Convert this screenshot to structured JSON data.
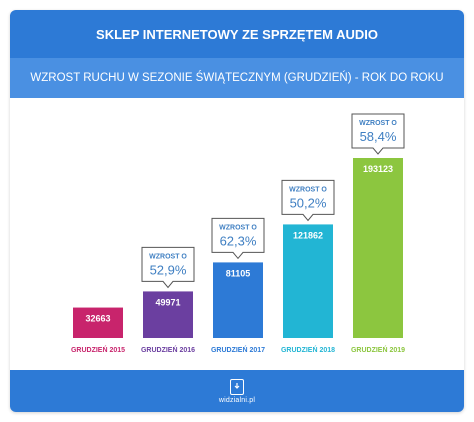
{
  "header": {
    "title": "SKLEP INTERNETOWY ZE SPRZĘTEM AUDIO",
    "subtitle": "WZROST RUCHU W SEZONIE ŚWIĄTECZNYM (GRUDZIEŃ) - ROK DO ROKU"
  },
  "footer": {
    "brand": "widzialni.pl"
  },
  "colors": {
    "header_top": "#2d7ad6",
    "header_sub": "#4a90e2",
    "footer": "#2d7ad6",
    "callout_border": "#555555",
    "callout_small_text": "#3f7fc2",
    "callout_big_text": "#3f7fc2",
    "bar_value_text": "#ffffff"
  },
  "chart_data": {
    "type": "bar",
    "categories": [
      "GRUDZIEŃ 2015",
      "GRUDZIEŃ 2016",
      "GRUDZIEŃ 2017",
      "GRUDZIEŃ 2018",
      "GRUDZIEŃ 2019"
    ],
    "values": [
      32663,
      49971,
      81105,
      121862,
      193123
    ],
    "value_labels": [
      "32663",
      "49971",
      "81105",
      "121862",
      "193123"
    ],
    "bar_colors": [
      "#c8246c",
      "#6b3fa0",
      "#2d7ad6",
      "#22b5d4",
      "#8cc63f"
    ],
    "category_label_colors": [
      "#c8246c",
      "#6b3fa0",
      "#2d7ad6",
      "#22b5d4",
      "#8cc63f"
    ],
    "growth": [
      null,
      "52,9%",
      "62,3%",
      "50,2%",
      "58,4%"
    ],
    "growth_label": "WZROST O",
    "ylim": [
      0,
      193123
    ],
    "grid": false
  }
}
